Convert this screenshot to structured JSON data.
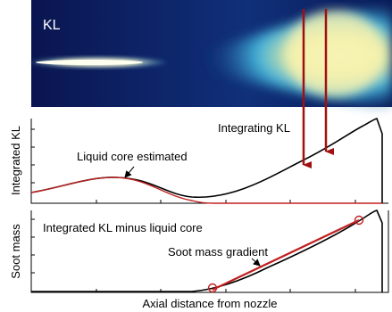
{
  "image": {
    "label": "KL"
  },
  "panels": [
    {
      "y_label": "Integrated KL",
      "annotations": [
        "Integrating KL",
        "Liquid core estimated"
      ]
    },
    {
      "y_label": "Soot mass",
      "annotations": [
        "Integrated KL minus liquid core",
        "Soot mass gradient"
      ]
    }
  ],
  "x_label": "Axial distance from nozzle"
}
